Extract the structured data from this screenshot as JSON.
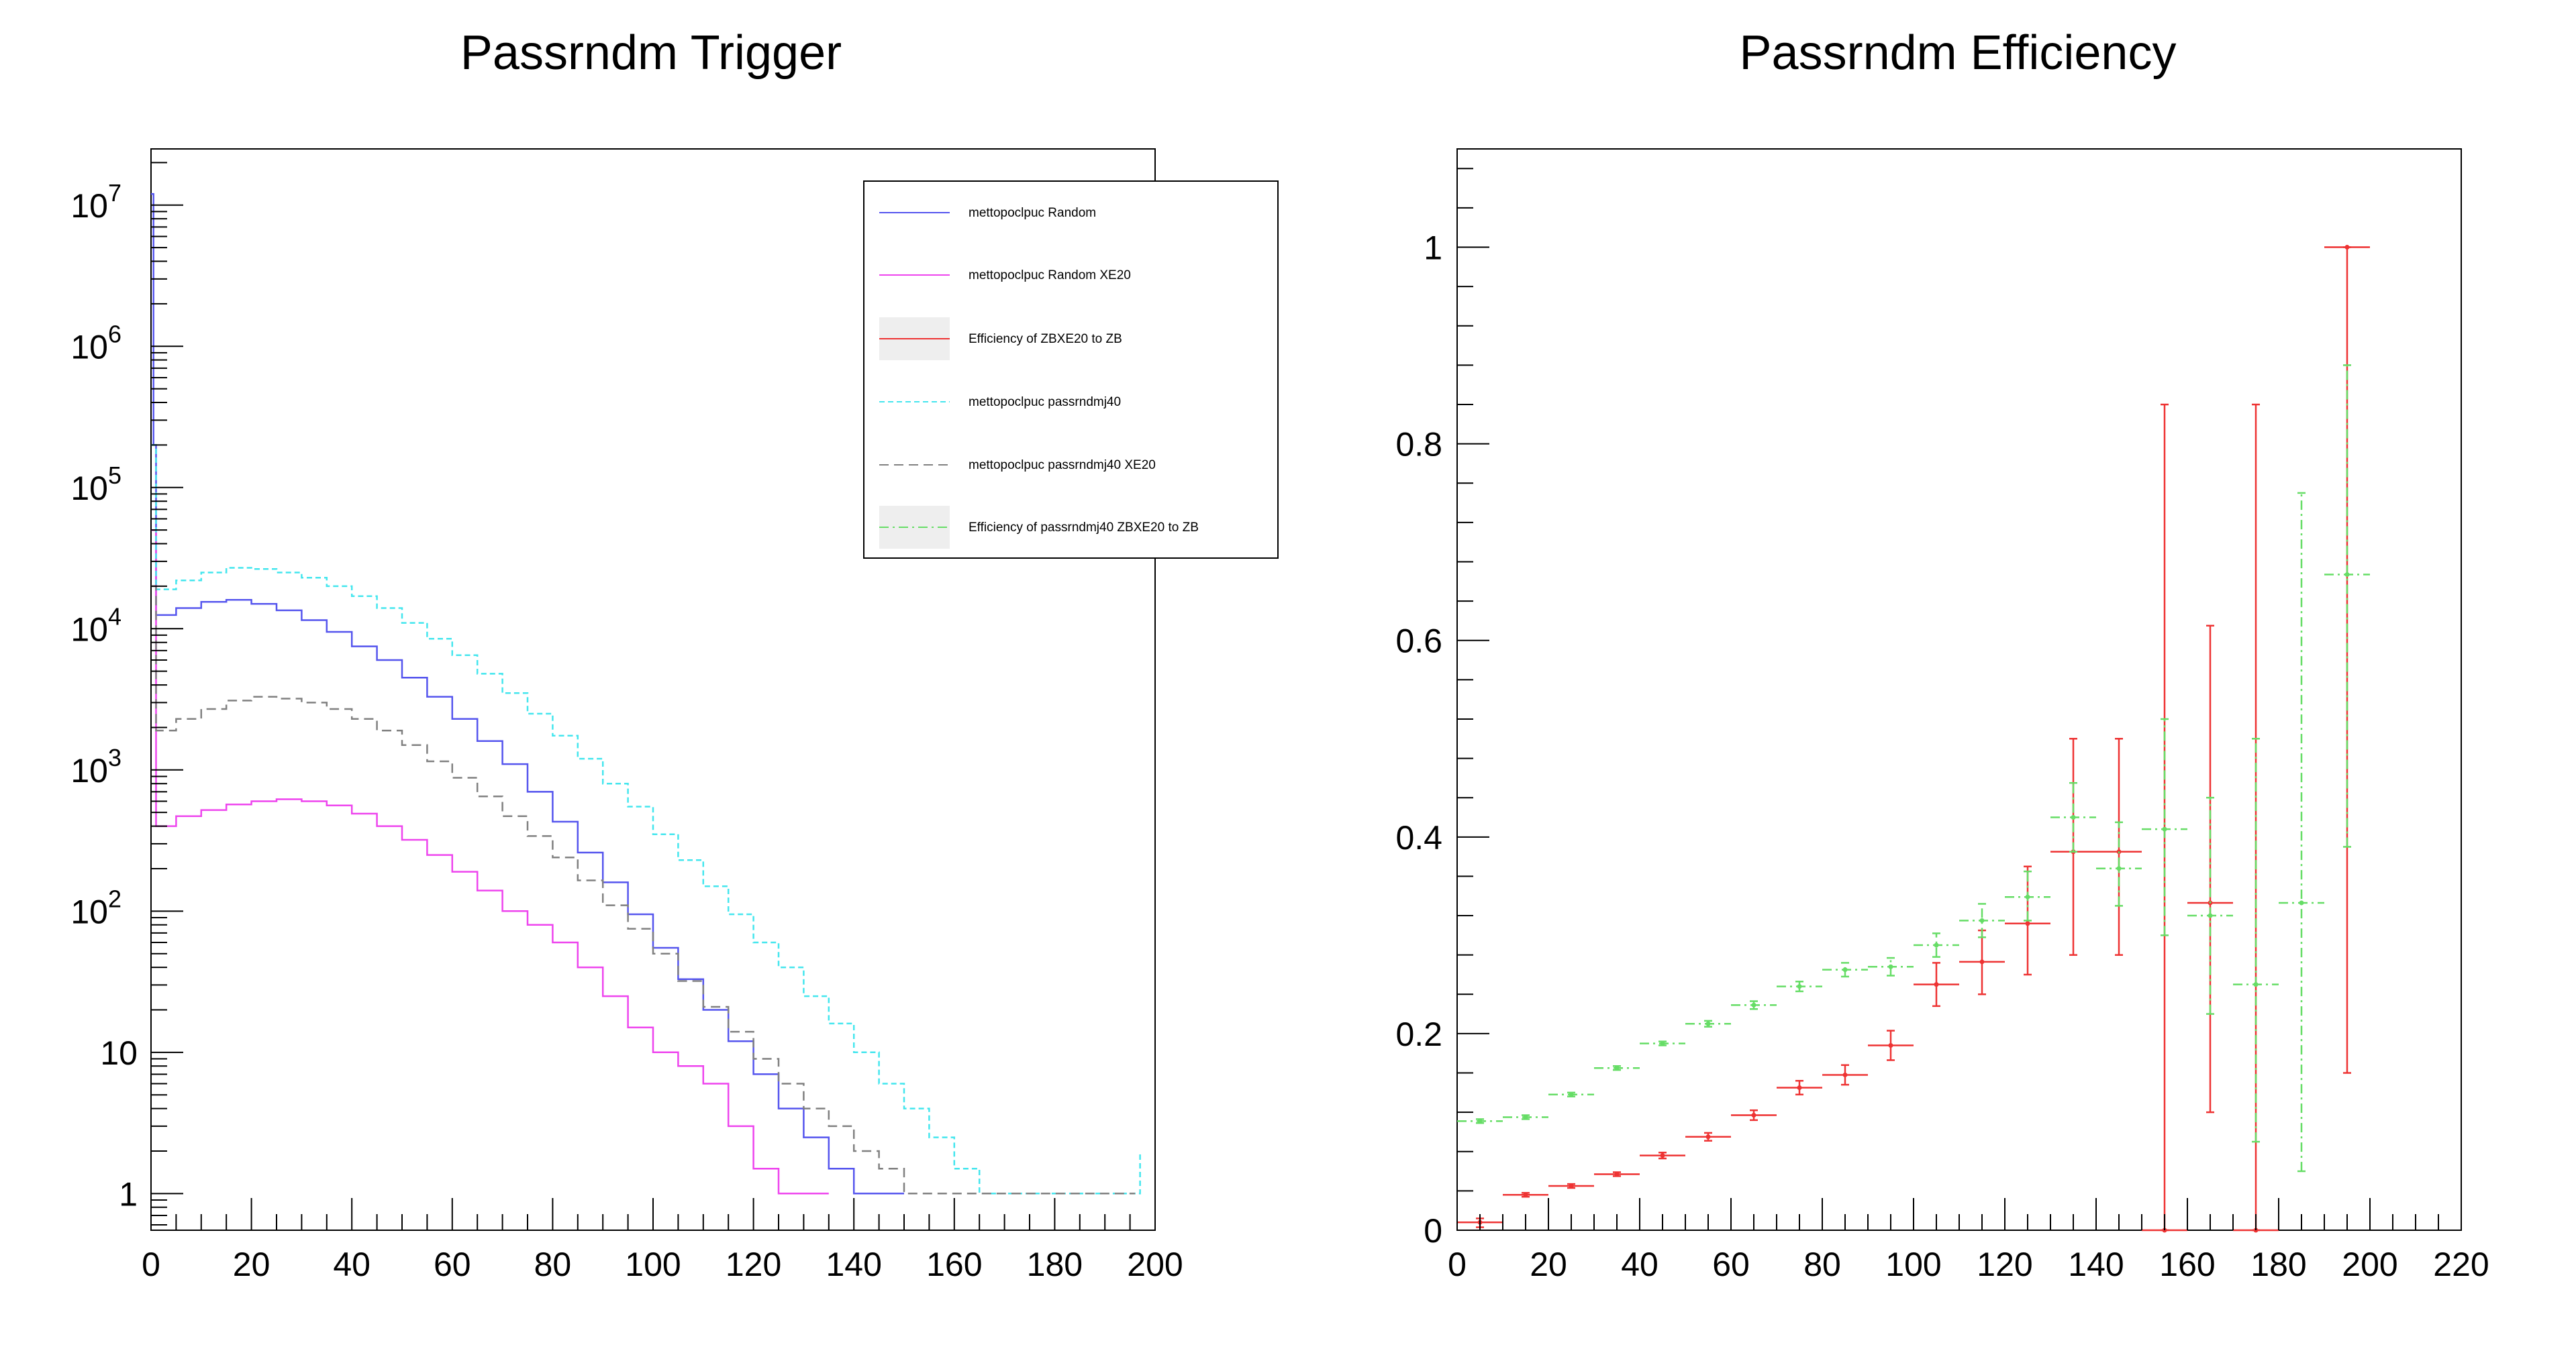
{
  "colors": {
    "random": "#5555ee",
    "random_xe20": "#ee44ee",
    "eff_zb": "#ee3333",
    "passrndmj40": "#44e6ee",
    "passrndmj40_xe20": "#808080",
    "eff_passrndmj40": "#66dd66"
  },
  "chart_data": [
    {
      "type": "line",
      "title": "Passrndm Trigger",
      "xlabel": "",
      "ylabel": "",
      "xlim": [
        0,
        200
      ],
      "ylim": [
        0.55,
        25000000
      ],
      "yscale": "log",
      "x_ticks": [
        "0",
        "20",
        "40",
        "60",
        "80",
        "100",
        "120",
        "140",
        "160",
        "180",
        "200"
      ],
      "y_ticks": [
        {
          "value": 1,
          "base": "1",
          "exp": ""
        },
        {
          "value": 10,
          "base": "10",
          "exp": ""
        },
        {
          "value": 100,
          "base": "10",
          "exp": "2"
        },
        {
          "value": 1000,
          "base": "10",
          "exp": "3"
        },
        {
          "value": 10000,
          "base": "10",
          "exp": "4"
        },
        {
          "value": 100000,
          "base": "10",
          "exp": "5"
        },
        {
          "value": 1000000,
          "base": "10",
          "exp": "6"
        },
        {
          "value": 10000000,
          "base": "10",
          "exp": "7"
        }
      ],
      "legend_position": "top-right",
      "legend": [
        {
          "label": "mettopoclpuc Random",
          "style": "line",
          "color_key": "random"
        },
        {
          "label": "mettopoclpuc Random XE20",
          "style": "line",
          "color_key": "random_xe20"
        },
        {
          "label": "Efficiency of ZBXE20 to ZB",
          "style": "box",
          "color_key": "eff_zb"
        },
        {
          "label": "mettopoclpuc passrndmj40",
          "style": "line",
          "color_key": "passrndmj40"
        },
        {
          "label": "mettopoclpuc passrndmj40 XE20",
          "style": "line",
          "color_key": "passrndmj40_xe20"
        },
        {
          "label": "Efficiency of passrndmj40 ZBXE20 to ZB",
          "style": "box",
          "color_key": "eff_passrndmj40"
        }
      ],
      "series": [
        {
          "color_key": "random",
          "points": [
            [
              0,
              12000000
            ],
            [
              0.5,
              200000
            ],
            [
              1,
              12500
            ],
            [
              5,
              14000
            ],
            [
              10,
              15500
            ],
            [
              15,
              16000
            ],
            [
              20,
              15000
            ],
            [
              25,
              13500
            ],
            [
              30,
              11500
            ],
            [
              35,
              9500
            ],
            [
              40,
              7500
            ],
            [
              45,
              6000
            ],
            [
              50,
              4500
            ],
            [
              55,
              3300
            ],
            [
              60,
              2300
            ],
            [
              65,
              1600
            ],
            [
              70,
              1100
            ],
            [
              75,
              700
            ],
            [
              80,
              430
            ],
            [
              85,
              260
            ],
            [
              90,
              160
            ],
            [
              95,
              95
            ],
            [
              100,
              55
            ],
            [
              105,
              33
            ],
            [
              110,
              20
            ],
            [
              115,
              12
            ],
            [
              120,
              7
            ],
            [
              125,
              4
            ],
            [
              130,
              2.5
            ],
            [
              135,
              1.5
            ],
            [
              140,
              1
            ],
            [
              145,
              1
            ],
            [
              150,
              1
            ]
          ]
        },
        {
          "color_key": "random_xe20",
          "points": [
            [
              0,
              50000
            ],
            [
              1,
              400
            ],
            [
              5,
              470
            ],
            [
              10,
              520
            ],
            [
              15,
              570
            ],
            [
              20,
              600
            ],
            [
              25,
              620
            ],
            [
              30,
              600
            ],
            [
              35,
              560
            ],
            [
              40,
              490
            ],
            [
              45,
              400
            ],
            [
              50,
              320
            ],
            [
              55,
              250
            ],
            [
              60,
              190
            ],
            [
              65,
              140
            ],
            [
              70,
              100
            ],
            [
              75,
              80
            ],
            [
              80,
              60
            ],
            [
              85,
              40
            ],
            [
              90,
              25
            ],
            [
              95,
              15
            ],
            [
              100,
              10
            ],
            [
              105,
              8
            ],
            [
              110,
              6
            ],
            [
              115,
              3
            ],
            [
              120,
              1.5
            ],
            [
              125,
              1
            ],
            [
              130,
              1
            ],
            [
              135,
              1
            ]
          ]
        },
        {
          "color_key": "passrndmj40",
          "points": [
            [
              0,
              200000
            ],
            [
              1,
              19000
            ],
            [
              5,
              22000
            ],
            [
              10,
              25000
            ],
            [
              15,
              27000
            ],
            [
              20,
              26500
            ],
            [
              25,
              25000
            ],
            [
              30,
              23000
            ],
            [
              35,
              20000
            ],
            [
              40,
              17000
            ],
            [
              45,
              14000
            ],
            [
              50,
              11000
            ],
            [
              55,
              8500
            ],
            [
              60,
              6500
            ],
            [
              65,
              4800
            ],
            [
              70,
              3500
            ],
            [
              75,
              2500
            ],
            [
              80,
              1750
            ],
            [
              85,
              1200
            ],
            [
              90,
              800
            ],
            [
              95,
              550
            ],
            [
              100,
              350
            ],
            [
              105,
              230
            ],
            [
              110,
              150
            ],
            [
              115,
              95
            ],
            [
              120,
              60
            ],
            [
              125,
              40
            ],
            [
              130,
              25
            ],
            [
              135,
              16
            ],
            [
              140,
              10
            ],
            [
              145,
              6
            ],
            [
              150,
              4
            ],
            [
              155,
              2.5
            ],
            [
              160,
              1.5
            ],
            [
              165,
              1
            ],
            [
              170,
              1
            ],
            [
              180,
              1
            ],
            [
              190,
              1
            ],
            [
              197,
              2
            ]
          ]
        },
        {
          "color_key": "passrndmj40_xe20",
          "points": [
            [
              0,
              20000
            ],
            [
              1,
              1900
            ],
            [
              5,
              2300
            ],
            [
              10,
              2700
            ],
            [
              15,
              3100
            ],
            [
              20,
              3300
            ],
            [
              25,
              3200
            ],
            [
              30,
              3000
            ],
            [
              35,
              2700
            ],
            [
              40,
              2300
            ],
            [
              45,
              1900
            ],
            [
              50,
              1500
            ],
            [
              55,
              1150
            ],
            [
              60,
              880
            ],
            [
              65,
              650
            ],
            [
              70,
              470
            ],
            [
              75,
              340
            ],
            [
              80,
              240
            ],
            [
              85,
              165
            ],
            [
              90,
              110
            ],
            [
              95,
              75
            ],
            [
              100,
              50
            ],
            [
              105,
              32
            ],
            [
              110,
              21
            ],
            [
              115,
              14
            ],
            [
              120,
              9
            ],
            [
              125,
              6
            ],
            [
              130,
              4
            ],
            [
              135,
              3
            ],
            [
              140,
              2
            ],
            [
              145,
              1.5
            ],
            [
              150,
              1
            ],
            [
              160,
              1
            ],
            [
              170,
              1
            ],
            [
              180,
              1
            ],
            [
              190,
              1
            ],
            [
              196,
              1
            ]
          ]
        }
      ]
    },
    {
      "type": "scatter",
      "title": "Passrndm Efficiency",
      "xlabel": "",
      "ylabel": "",
      "xlim": [
        0,
        220
      ],
      "ylim": [
        0,
        1.1
      ],
      "x_ticks": [
        "0",
        "20",
        "40",
        "60",
        "80",
        "100",
        "120",
        "140",
        "160",
        "180",
        "200",
        "220"
      ],
      "y_ticks": [
        "0",
        "0.2",
        "0.4",
        "0.6",
        "0.8",
        "1"
      ],
      "series": [
        {
          "color_key": "eff_zb",
          "x_halfwidth": 5,
          "points": [
            {
              "x": 5,
              "y": 0.008,
              "ylo": 0.003,
              "yhi": 0.012
            },
            {
              "x": 15,
              "y": 0.036,
              "ylo": 0.034,
              "yhi": 0.038
            },
            {
              "x": 25,
              "y": 0.045,
              "ylo": 0.043,
              "yhi": 0.047
            },
            {
              "x": 35,
              "y": 0.057,
              "ylo": 0.055,
              "yhi": 0.059
            },
            {
              "x": 45,
              "y": 0.076,
              "ylo": 0.073,
              "yhi": 0.079
            },
            {
              "x": 55,
              "y": 0.095,
              "ylo": 0.091,
              "yhi": 0.099
            },
            {
              "x": 65,
              "y": 0.117,
              "ylo": 0.112,
              "yhi": 0.122
            },
            {
              "x": 75,
              "y": 0.145,
              "ylo": 0.138,
              "yhi": 0.152
            },
            {
              "x": 85,
              "y": 0.158,
              "ylo": 0.148,
              "yhi": 0.168
            },
            {
              "x": 95,
              "y": 0.188,
              "ylo": 0.173,
              "yhi": 0.203
            },
            {
              "x": 105,
              "y": 0.25,
              "ylo": 0.228,
              "yhi": 0.272
            },
            {
              "x": 115,
              "y": 0.273,
              "ylo": 0.24,
              "yhi": 0.305
            },
            {
              "x": 125,
              "y": 0.312,
              "ylo": 0.26,
              "yhi": 0.37
            },
            {
              "x": 135,
              "y": 0.385,
              "ylo": 0.28,
              "yhi": 0.5
            },
            {
              "x": 145,
              "y": 0.385,
              "ylo": 0.28,
              "yhi": 0.5
            },
            {
              "x": 155,
              "y": 0,
              "ylo": 0,
              "yhi": 0.84
            },
            {
              "x": 165,
              "y": 0.333,
              "ylo": 0.12,
              "yhi": 0.615
            },
            {
              "x": 175,
              "y": 0,
              "ylo": 0,
              "yhi": 0.84
            },
            {
              "x": 195,
              "y": 1.0,
              "ylo": 0.16,
              "yhi": 1.0
            }
          ]
        },
        {
          "color_key": "eff_passrndmj40",
          "x_halfwidth": 5,
          "points": [
            {
              "x": 5,
              "y": 0.111,
              "ylo": 0.109,
              "yhi": 0.113
            },
            {
              "x": 15,
              "y": 0.115,
              "ylo": 0.113,
              "yhi": 0.117
            },
            {
              "x": 25,
              "y": 0.138,
              "ylo": 0.136,
              "yhi": 0.14
            },
            {
              "x": 35,
              "y": 0.165,
              "ylo": 0.163,
              "yhi": 0.167
            },
            {
              "x": 45,
              "y": 0.19,
              "ylo": 0.188,
              "yhi": 0.192
            },
            {
              "x": 55,
              "y": 0.21,
              "ylo": 0.207,
              "yhi": 0.213
            },
            {
              "x": 65,
              "y": 0.229,
              "ylo": 0.225,
              "yhi": 0.233
            },
            {
              "x": 75,
              "y": 0.248,
              "ylo": 0.243,
              "yhi": 0.253
            },
            {
              "x": 85,
              "y": 0.265,
              "ylo": 0.258,
              "yhi": 0.272
            },
            {
              "x": 95,
              "y": 0.268,
              "ylo": 0.259,
              "yhi": 0.277
            },
            {
              "x": 105,
              "y": 0.29,
              "ylo": 0.278,
              "yhi": 0.302
            },
            {
              "x": 115,
              "y": 0.315,
              "ylo": 0.298,
              "yhi": 0.332
            },
            {
              "x": 125,
              "y": 0.339,
              "ylo": 0.315,
              "yhi": 0.365
            },
            {
              "x": 135,
              "y": 0.42,
              "ylo": 0.385,
              "yhi": 0.455
            },
            {
              "x": 145,
              "y": 0.368,
              "ylo": 0.33,
              "yhi": 0.415
            },
            {
              "x": 155,
              "y": 0.408,
              "ylo": 0.3,
              "yhi": 0.52
            },
            {
              "x": 165,
              "y": 0.32,
              "ylo": 0.22,
              "yhi": 0.44
            },
            {
              "x": 175,
              "y": 0.25,
              "ylo": 0.09,
              "yhi": 0.5
            },
            {
              "x": 185,
              "y": 0.333,
              "ylo": 0.06,
              "yhi": 0.75
            },
            {
              "x": 195,
              "y": 0.667,
              "ylo": 0.39,
              "yhi": 0.88
            }
          ]
        }
      ]
    }
  ]
}
